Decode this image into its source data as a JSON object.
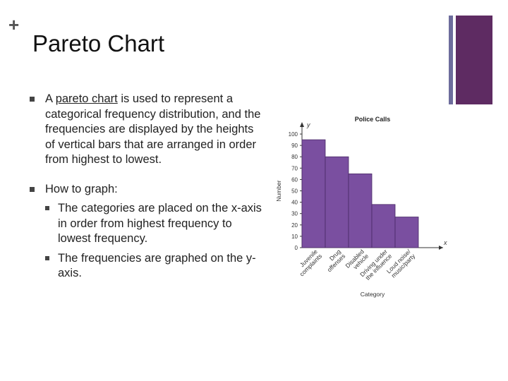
{
  "slide": {
    "plus_symbol": "+",
    "title": "Pareto Chart"
  },
  "bullets": {
    "first": {
      "prefix": "A ",
      "term": "pareto chart",
      "rest": " is used to represent a categorical frequency distribution, and the frequencies are displayed by the heights of vertical bars that are arranged in order from highest to lowest."
    },
    "second": {
      "text": "How to graph:",
      "subs": [
        "The categories are placed on the x-axis in order from highest frequency to lowest frequency.",
        "The frequencies are graphed on the y-axis."
      ]
    }
  },
  "colors": {
    "bar_fill": "#7a4fa0",
    "deco_thin": "#6d6c9c",
    "deco_thick": "#5e2b62"
  },
  "chart_data": {
    "type": "bar",
    "title": "Police Calls",
    "xlabel": "Category",
    "ylabel": "Number",
    "x_axis_letter": "x",
    "y_axis_letter": "y",
    "ylim": [
      0,
      100
    ],
    "yticks": [
      0,
      10,
      20,
      30,
      40,
      50,
      60,
      70,
      80,
      90,
      100
    ],
    "categories": [
      [
        "Juvenile",
        "complaints"
      ],
      [
        "Drug",
        "offenses"
      ],
      [
        "Disabled",
        "vehicle"
      ],
      [
        "Driving under",
        "the influence"
      ],
      [
        "Loud noise/",
        "music/party"
      ]
    ],
    "values": [
      95,
      80,
      65,
      38,
      27
    ]
  }
}
